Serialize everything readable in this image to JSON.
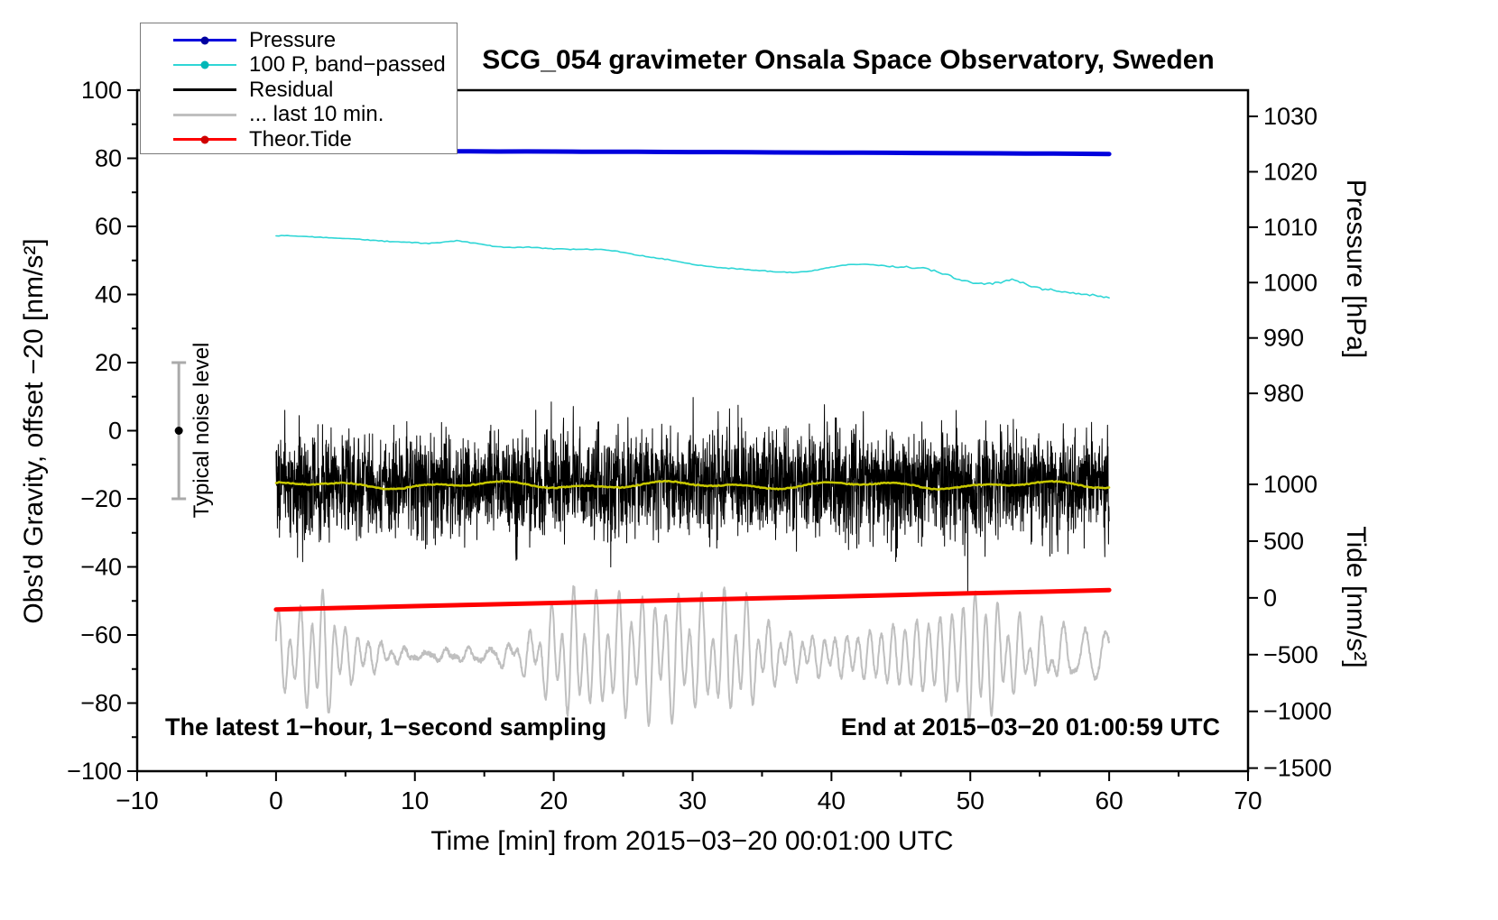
{
  "title": "SCG_054 gravimeter Onsala Space Observatory, Sweden",
  "labels": {
    "left_axis": "Obs'd Gravity, offset −20 [nm/s²]",
    "bottom_axis": "Time [min] from 2015−03−20 00:01:00 UTC",
    "right_pressure_axis": "Pressure [hPa]",
    "right_tide_axis": "Tide [nm/s²]",
    "noise_marker": "Typical noise level",
    "bottom_left_note": "The latest 1−hour, 1−second sampling",
    "bottom_right_note": "End at 2015−03−20 01:00:59 UTC"
  },
  "legend": {
    "items": [
      {
        "label": "Pressure",
        "color": "#0000dd",
        "dot": true,
        "dot_color": "#0000a0",
        "thickness": 3
      },
      {
        "label": "100 P, band−passed",
        "color": "#2fd6d6",
        "dot": true,
        "dot_color": "#00b7b7",
        "thickness": 2
      },
      {
        "label": "Residual",
        "color": "#000000",
        "dot": false,
        "thickness": 3
      },
      {
        "label": "... last 10 min.",
        "color": "#bfbfbf",
        "dot": false,
        "thickness": 3
      },
      {
        "label": "Theor.Tide",
        "color": "#ff0000",
        "dot": true,
        "dot_color": "#d00000",
        "thickness": 3
      }
    ]
  },
  "chart_data": {
    "type": "line",
    "title": "SCG_054 gravimeter Onsala Space Observatory, Sweden",
    "x_axis": {
      "label": "Time [min] from 2015−03−20 00:01:00 UTC",
      "range": [
        -10,
        70
      ],
      "major_ticks": [
        -10,
        0,
        10,
        20,
        30,
        40,
        50,
        60,
        70
      ],
      "minor_tick_step": 5
    },
    "y_left": {
      "label": "Obs'd Gravity, offset −20 [nm/s²]",
      "range": [
        -100,
        100
      ],
      "major_ticks": [
        -100,
        -80,
        -60,
        -40,
        -20,
        0,
        20,
        40,
        60,
        80,
        100
      ],
      "minor_tick_step": 10
    },
    "y_right_pressure": {
      "label": "Pressure [hPa]",
      "ticks": [
        1030,
        1020,
        1010,
        1000,
        990,
        980
      ],
      "left_at_1000": 43.5,
      "left_per_hpa": 1.627
    },
    "y_right_tide": {
      "label": "Tide [nm/s²]",
      "ticks": [
        1000,
        500,
        0,
        -500,
        -1000,
        -1500
      ],
      "left_at_0": -49.1,
      "left_per_unit": 0.03333
    },
    "noise_marker": {
      "x": -7,
      "center": 0,
      "half_range": 20,
      "label": "Typical noise level"
    },
    "series": {
      "last10": {
        "name": "... last 10 min.",
        "color": "#bfbfbf",
        "width": 2,
        "axis": "left",
        "generated": true,
        "n": 2400,
        "center": -66,
        "clip": [
          -98,
          -42
        ],
        "seed": 99
      },
      "residual": {
        "name": "Residual",
        "color": "#000000",
        "width": 1,
        "axis": "left",
        "generated": true,
        "n": 3600,
        "x_range": [
          0,
          60
        ],
        "mean": -15.5,
        "std": 7.5,
        "spike_prob": 0.004,
        "clip": [
          -47.5,
          19
        ],
        "seed": 20150320
      },
      "residual_smooth": {
        "name": "Residual low-passed",
        "color": "#c8c800",
        "width": 2.5,
        "axis": "left",
        "generated": true,
        "n": 600,
        "mean": -16,
        "seed": 7
      },
      "band_passed": {
        "name": "100 P, band−passed",
        "color": "#2fd6d6",
        "width": 1.6,
        "axis": "left",
        "x_start": 0,
        "x_step": 1,
        "values": [
          57.2,
          57.3,
          57.0,
          56.8,
          56.7,
          56.5,
          56.2,
          55.9,
          55.6,
          55.4,
          55.2,
          55.0,
          55.3,
          55.8,
          55.2,
          54.6,
          54.0,
          53.8,
          53.9,
          53.7,
          53.4,
          53.3,
          53.2,
          53.3,
          53.0,
          52.4,
          51.6,
          51.0,
          50.4,
          49.7,
          48.9,
          48.3,
          47.9,
          47.6,
          47.3,
          47.0,
          46.7,
          46.5,
          46.6,
          47.2,
          48.0,
          48.7,
          48.9,
          48.7,
          48.4,
          48.2,
          47.9,
          47.5,
          46.2,
          44.6,
          43.6,
          43.0,
          43.3,
          44.6,
          43.0,
          41.8,
          41.2,
          40.6,
          40.2,
          39.7,
          39.2
        ]
      },
      "pressure": {
        "name": "Pressure",
        "color": "#0000dd",
        "width": 5,
        "axis": "pressure",
        "x_start": 0,
        "x_step": 2,
        "values_hpa": [
          1023.7,
          1023.7,
          1023.72,
          1023.71,
          1023.7,
          1023.69,
          1023.7,
          1023.68,
          1023.66,
          1023.67,
          1023.65,
          1023.62,
          1023.63,
          1023.6,
          1023.58,
          1023.55,
          1023.56,
          1023.53,
          1023.5,
          1023.48,
          1023.45,
          1023.46,
          1023.43,
          1023.4,
          1023.38,
          1023.35,
          1023.33,
          1023.3,
          1023.28,
          1023.25,
          1023.22
        ]
      },
      "tide": {
        "name": "Theor.Tide",
        "color": "#ff0000",
        "width": 5,
        "axis": "tide",
        "x_start": 0,
        "x_step": 5,
        "values_nms2": [
          -102,
          -88,
          -73,
          -59,
          -45,
          -31,
          -17,
          -3,
          11,
          26,
          40,
          54,
          69
        ]
      }
    },
    "annotations": {
      "bottom_left": "The latest 1−hour, 1−second sampling",
      "bottom_right": "End at 2015−03−20 01:00:59 UTC"
    },
    "grid": false,
    "legend_position": "top-left"
  }
}
